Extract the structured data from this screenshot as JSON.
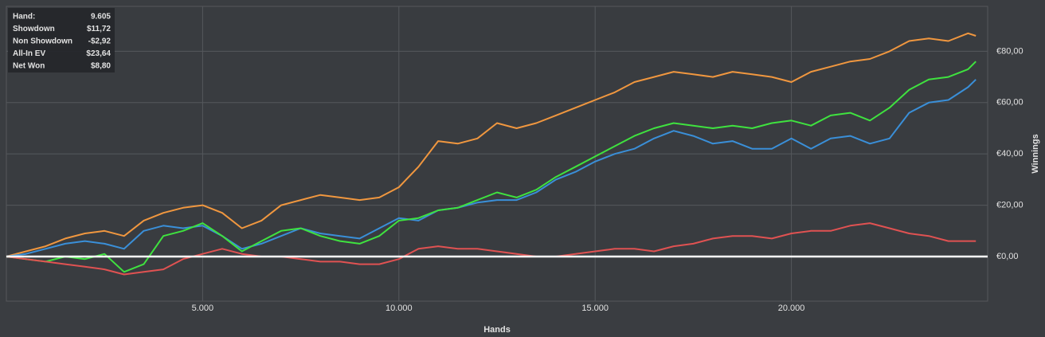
{
  "chart_data": {
    "type": "line",
    "x_label": "Hands",
    "y_label": "Winnings",
    "xlim": [
      0,
      25000
    ],
    "ylim": [
      -17.4,
      97.5
    ],
    "xticks": [
      {
        "value": 5000,
        "label": "5.000"
      },
      {
        "value": 10000,
        "label": "10.000"
      },
      {
        "value": 15000,
        "label": "15.000"
      },
      {
        "value": 20000,
        "label": "20.000"
      }
    ],
    "yticks": [
      {
        "value": 0,
        "label": "€0,00"
      },
      {
        "value": 20,
        "label": "€20,00"
      },
      {
        "value": 40,
        "label": "€40,00"
      },
      {
        "value": 60,
        "label": "€60,00"
      },
      {
        "value": 80,
        "label": "€80,00"
      }
    ],
    "grid": true,
    "x": [
      0,
      500,
      1000,
      1500,
      2000,
      2500,
      3000,
      3500,
      4000,
      4500,
      5000,
      5500,
      6000,
      6500,
      7000,
      7500,
      8000,
      8500,
      9000,
      9500,
      10000,
      10500,
      11000,
      11500,
      12000,
      12500,
      13000,
      13500,
      14000,
      14500,
      15000,
      15500,
      16000,
      16500,
      17000,
      17500,
      18000,
      18500,
      19000,
      19500,
      20000,
      20500,
      21000,
      21500,
      22000,
      22500,
      23000,
      23500,
      24000,
      24500,
      24700
    ],
    "series": [
      {
        "color": "#f0973f",
        "values": [
          0,
          2,
          4,
          7,
          9,
          10,
          8,
          14,
          17,
          19,
          20,
          17,
          11,
          14,
          20,
          22,
          24,
          23,
          22,
          23,
          27,
          35,
          45,
          44,
          46,
          52,
          50,
          52,
          55,
          58,
          61,
          64,
          68,
          70,
          72,
          71,
          70,
          72,
          71,
          70,
          68,
          72,
          74,
          76,
          77,
          80,
          84,
          85,
          84,
          87,
          86
        ]
      },
      {
        "color": "#3a8fd8",
        "values": [
          0,
          1,
          3,
          5,
          6,
          5,
          3,
          10,
          12,
          11,
          12,
          8,
          3,
          5,
          8,
          11,
          9,
          8,
          7,
          11,
          15,
          14,
          18,
          19,
          21,
          22,
          22,
          25,
          30,
          33,
          37,
          40,
          42,
          46,
          49,
          47,
          44,
          45,
          42,
          42,
          46,
          42,
          46,
          47,
          44,
          46,
          56,
          60,
          61,
          66,
          69
        ]
      },
      {
        "color": "#3fe23f",
        "values": [
          0,
          -1,
          -2,
          0,
          -1,
          1,
          -6,
          -3,
          8,
          10,
          13,
          8,
          2,
          6,
          10,
          11,
          8,
          6,
          5,
          8,
          14,
          15,
          18,
          19,
          22,
          25,
          23,
          26,
          31,
          35,
          39,
          43,
          47,
          50,
          52,
          51,
          50,
          51,
          50,
          52,
          53,
          51,
          55,
          56,
          53,
          58,
          65,
          69,
          70,
          73,
          76
        ]
      },
      {
        "color": "#e05252",
        "values": [
          0,
          -1,
          -2,
          -3,
          -4,
          -5,
          -7,
          -6,
          -5,
          -1,
          1,
          3,
          1,
          0,
          0,
          -1,
          -2,
          -2,
          -3,
          -3,
          -1,
          3,
          4,
          3,
          3,
          2,
          1,
          0,
          0,
          1,
          2,
          3,
          3,
          2,
          4,
          5,
          7,
          8,
          8,
          7,
          9,
          10,
          10,
          12,
          13,
          11,
          9,
          8,
          6,
          6,
          6
        ]
      }
    ]
  },
  "tooltip": {
    "rows": [
      {
        "label": "Hand:",
        "value": "9.605"
      },
      {
        "label": "Showdown",
        "value": "$11,72"
      },
      {
        "label": "Non Showdown",
        "value": "-$2,92"
      },
      {
        "label": "All-In EV",
        "value": "$23,64"
      },
      {
        "label": "Net Won",
        "value": "$8,80"
      }
    ]
  }
}
